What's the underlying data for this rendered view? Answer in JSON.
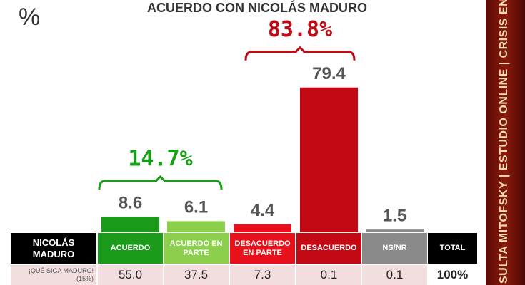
{
  "chart_data": {
    "type": "bar",
    "title": "ACUERDO CON NICOLÁS MADURO",
    "unit_label": "%",
    "categories": [
      "ACUERDO",
      "ACUERDO EN PARTE",
      "DESACUERDO EN PARTE",
      "DESACUERDO",
      "NS/NR"
    ],
    "values": [
      8.6,
      6.1,
      4.4,
      79.4,
      1.5
    ],
    "colors": [
      "#1c9a1c",
      "#8ccf4c",
      "#e8101a",
      "#c30a14",
      "#8a8a8a"
    ],
    "groups": [
      {
        "value": 14.7,
        "value_label": "14.7%",
        "color": "#16a016",
        "categories": [
          "ACUERDO",
          "ACUERDO EN PARTE"
        ]
      },
      {
        "value": 83.8,
        "value_label": "83.8%",
        "color": "#c00a14",
        "categories": [
          "DESACUERDO EN PARTE",
          "DESACUERDO"
        ]
      }
    ]
  },
  "table": {
    "row_header": "NICOLÁS MADURO",
    "total_header": "TOTAL",
    "rows": [
      {
        "label": "¡QUÉ SIGA MADURO!",
        "sublabel": "(15%)",
        "cells": [
          "55.0",
          "37.5",
          "7.3",
          "0.1",
          "0.1",
          "100%"
        ]
      }
    ]
  },
  "banner": "SULTA MITOFSKY | ESTUDIO ONLINE | CRISIS EN VENEZUELA"
}
